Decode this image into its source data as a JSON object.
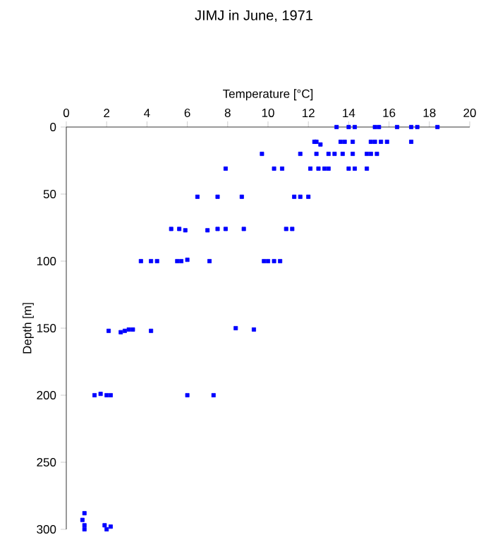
{
  "chart_data": {
    "type": "scatter",
    "title": "JIMJ in June, 1971",
    "xlabel": "Temperature [°C]",
    "ylabel": "Depth [m]",
    "xlim": [
      0,
      20
    ],
    "xticks": [
      0,
      2,
      4,
      6,
      8,
      10,
      12,
      14,
      16,
      18,
      20
    ],
    "ylim": [
      300,
      0
    ],
    "yticks": [
      0,
      50,
      100,
      150,
      200,
      250,
      300
    ],
    "marker": "square",
    "color": "#0000ff",
    "x": [
      13.4,
      14.0,
      14.3,
      15.3,
      15.5,
      16.4,
      17.1,
      17.4,
      18.4,
      12.3,
      12.4,
      12.6,
      13.6,
      13.8,
      14.2,
      15.1,
      15.3,
      15.6,
      15.9,
      17.1,
      9.7,
      11.6,
      12.4,
      13.0,
      13.3,
      13.7,
      14.2,
      14.9,
      15.1,
      15.4,
      7.9,
      10.3,
      10.7,
      12.1,
      12.5,
      12.8,
      13.0,
      14.0,
      14.3,
      14.9,
      6.5,
      7.5,
      8.7,
      11.3,
      11.6,
      12.0,
      5.2,
      5.6,
      5.9,
      7.0,
      7.5,
      7.9,
      8.8,
      10.9,
      11.2,
      3.7,
      4.2,
      4.5,
      5.5,
      5.7,
      6.0,
      7.1,
      9.8,
      10.0,
      10.3,
      10.6,
      2.1,
      2.7,
      2.9,
      3.1,
      3.3,
      4.2,
      8.4,
      9.3,
      1.4,
      1.7,
      2.0,
      2.2,
      6.0,
      7.3,
      0.9,
      0.8,
      0.9,
      0.9,
      1.9,
      2.0,
      2.2
    ],
    "values": [
      0,
      0,
      0,
      0,
      0,
      0,
      0,
      0,
      0,
      11,
      11,
      13,
      11,
      11,
      11,
      11,
      11,
      11,
      11,
      11,
      20,
      20,
      20,
      20,
      20,
      20,
      20,
      20,
      20,
      20,
      31,
      31,
      31,
      31,
      31,
      31,
      31,
      31,
      31,
      31,
      52,
      52,
      52,
      52,
      52,
      52,
      76,
      76,
      77,
      77,
      76,
      76,
      76,
      76,
      76,
      100,
      100,
      100,
      100,
      100,
      99,
      100,
      100,
      100,
      100,
      100,
      152,
      153,
      152,
      151,
      151,
      152,
      150,
      151,
      200,
      199,
      200,
      200,
      200,
      200,
      288,
      293,
      297,
      300,
      297,
      300,
      298
    ]
  }
}
